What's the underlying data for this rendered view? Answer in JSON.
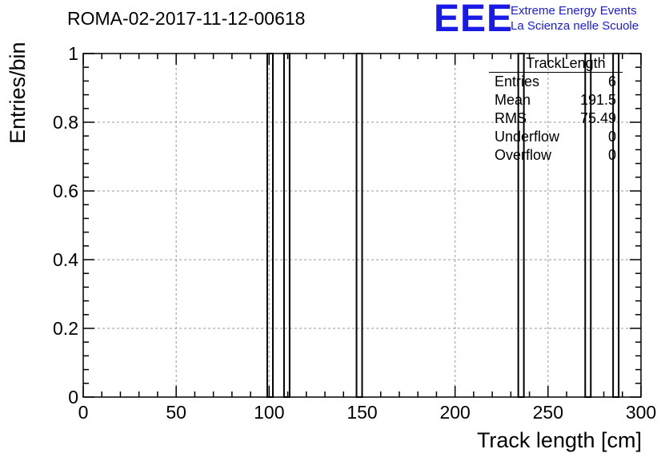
{
  "chart_data": {
    "type": "bar",
    "title": "ROMA-02-2017-11-12-00618",
    "xlabel": "Track length [cm]",
    "ylabel": "Entries/bin",
    "xlim": [
      0,
      300
    ],
    "ylim": [
      0,
      1
    ],
    "x_ticks": [
      "0",
      "50",
      "100",
      "150",
      "200",
      "250",
      "300"
    ],
    "y_ticks": [
      "0",
      "0.2",
      "0.4",
      "0.6",
      "0.8",
      "1"
    ],
    "grid": true,
    "bin_width": 3,
    "bins": [
      {
        "x_low": 99,
        "x_high": 102,
        "value": 1
      },
      {
        "x_low": 108,
        "x_high": 111,
        "value": 1
      },
      {
        "x_low": 147,
        "x_high": 150,
        "value": 1
      },
      {
        "x_low": 234,
        "x_high": 237,
        "value": 1
      },
      {
        "x_low": 270,
        "x_high": 273,
        "value": 1
      },
      {
        "x_low": 285,
        "x_high": 288,
        "value": 1
      }
    ]
  },
  "logo": {
    "mark": "EEE",
    "line1": "Extreme Energy Events",
    "line2": "La Scienza nelle Scuole",
    "color": "#1a1ae6"
  },
  "stats": {
    "title": "TrackLength",
    "rows": [
      {
        "label": "Entries",
        "value": "6"
      },
      {
        "label": "Mean",
        "value": "191.5"
      },
      {
        "label": "RMS",
        "value": "75.49"
      },
      {
        "label": "Underflow",
        "value": "0"
      },
      {
        "label": "Overflow",
        "value": "0"
      }
    ]
  }
}
